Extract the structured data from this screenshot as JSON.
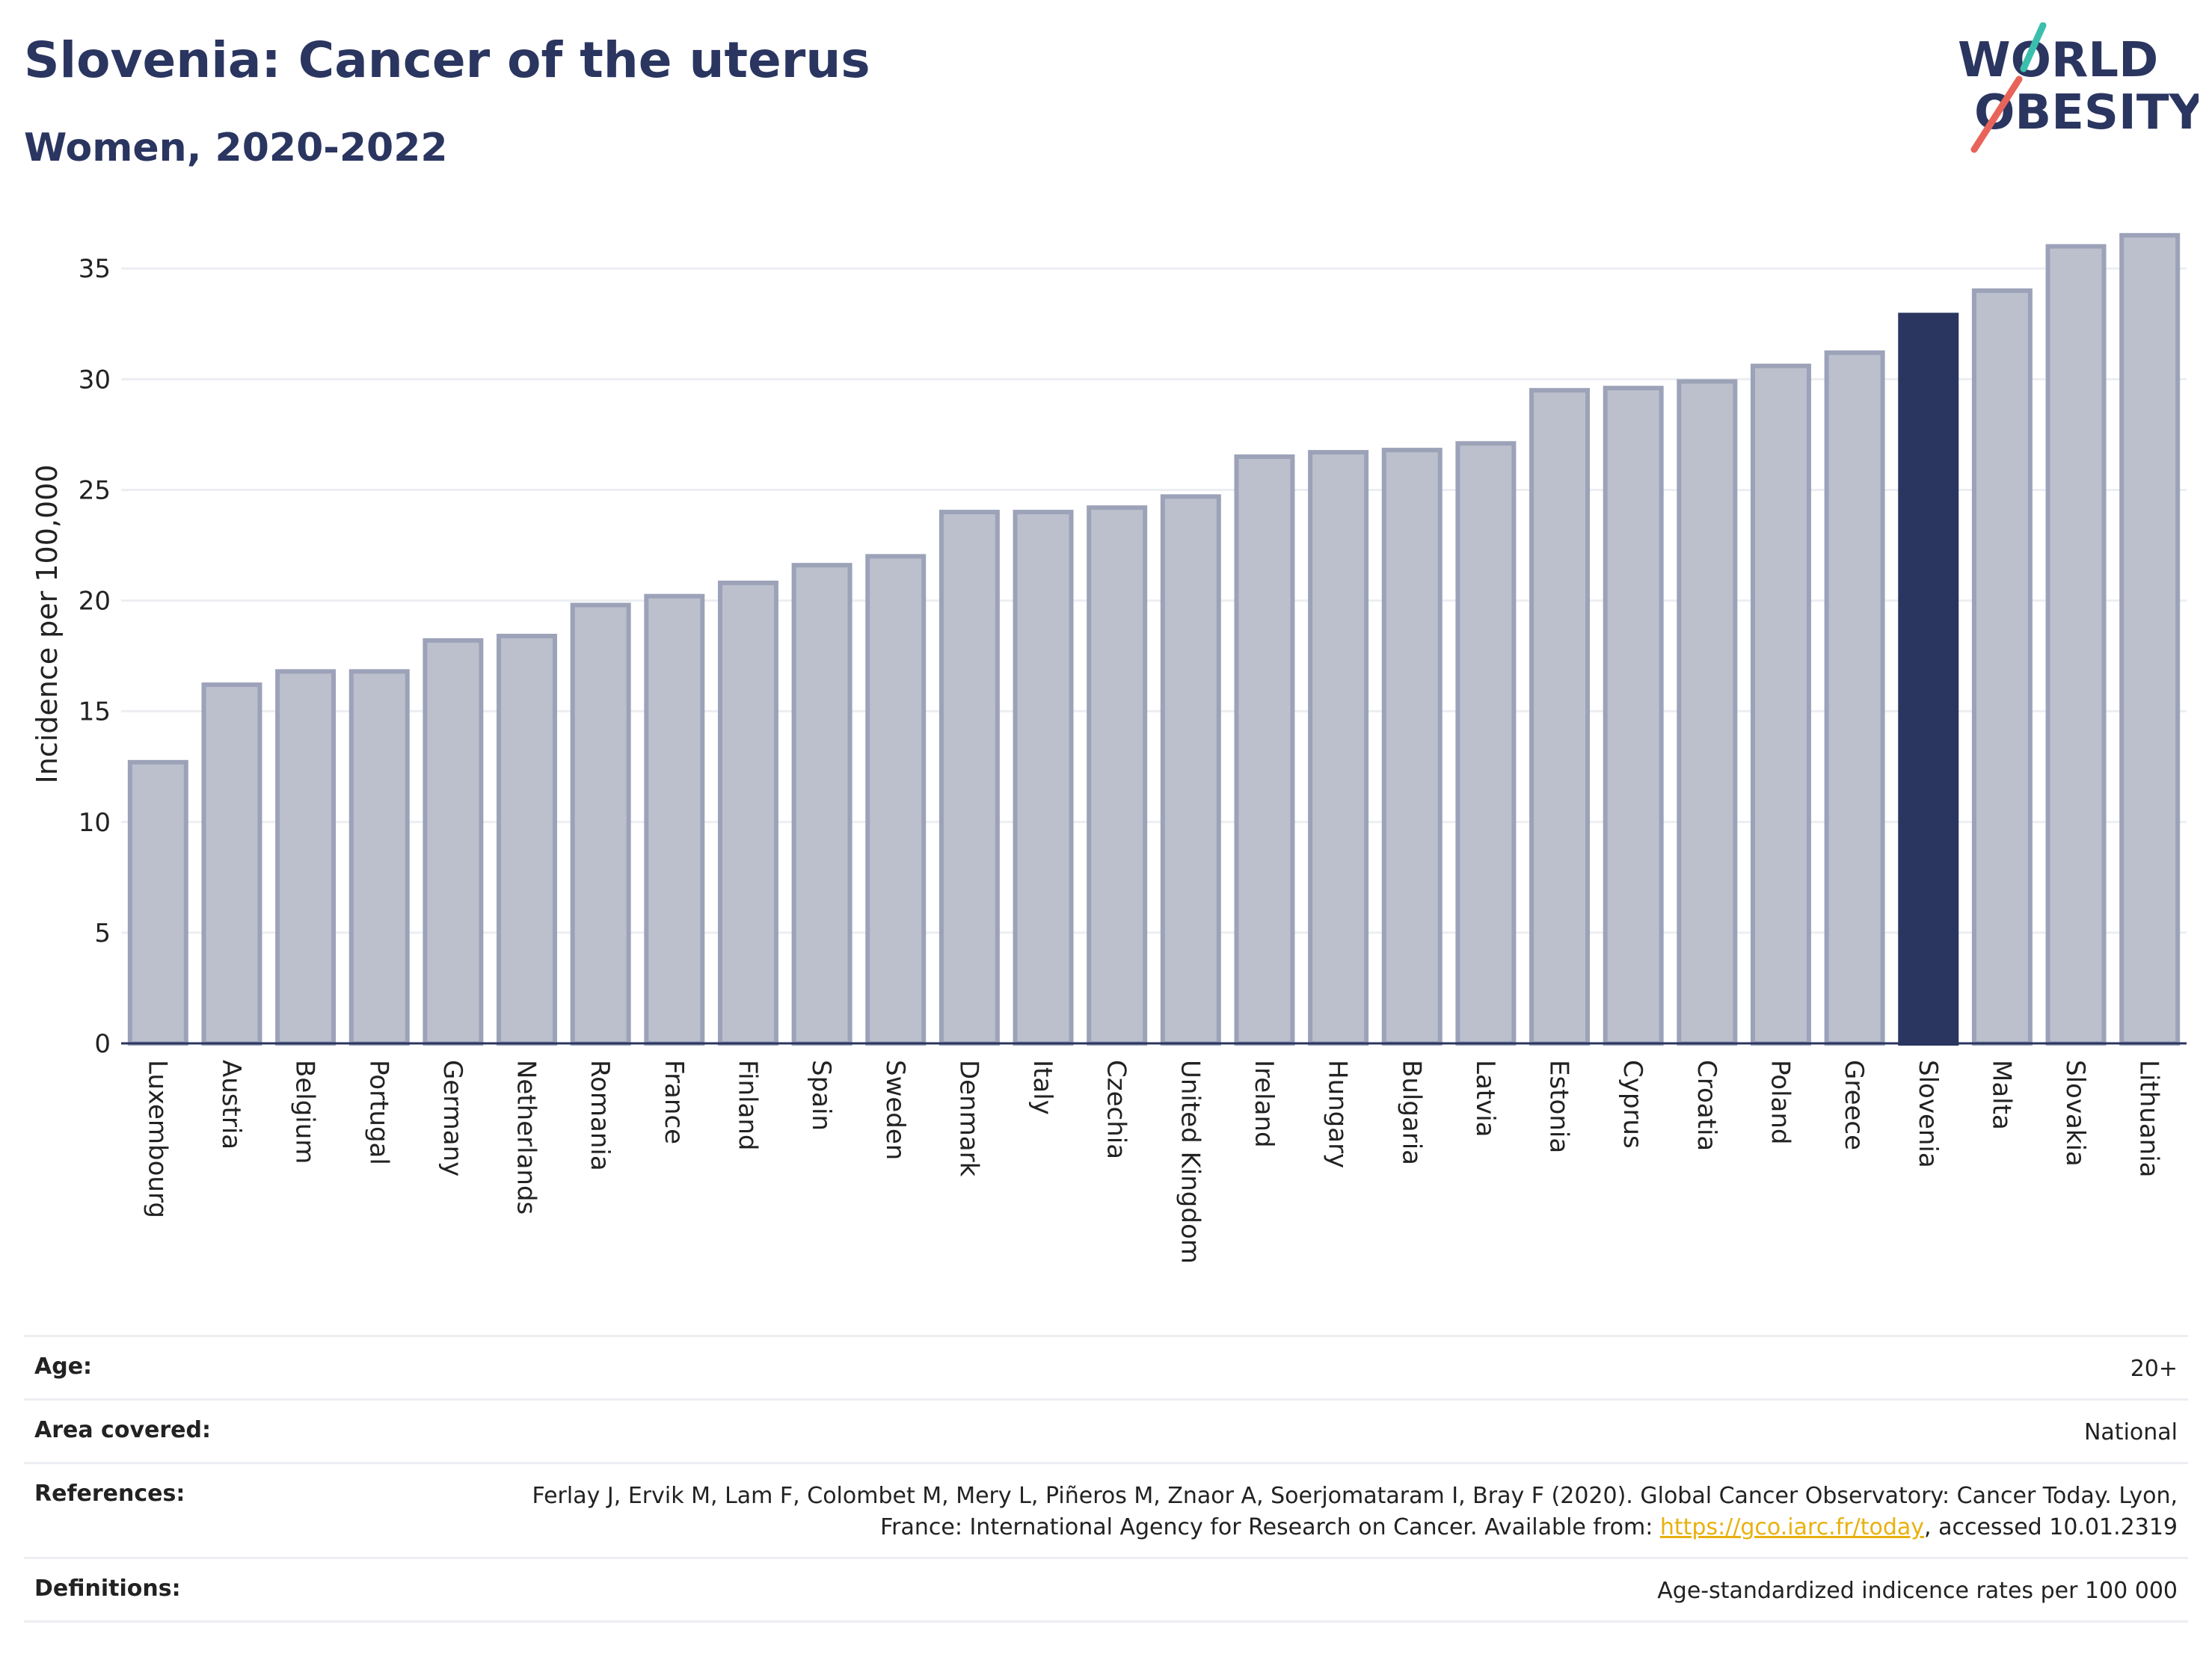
{
  "header": {
    "title": "Slovenia: Cancer of the uterus",
    "subtitle": "Women, 2020-2022"
  },
  "logo": {
    "line1": "WORLD",
    "line2": "OBESITY",
    "accent_teal": "#3bbfad",
    "accent_red": "#e8635a"
  },
  "colors": {
    "bar": "#bcc0cd",
    "bar_border": "#9ca2b8",
    "highlight": "#2a3560",
    "grid": "#eceef2"
  },
  "chart_data": {
    "type": "bar",
    "ylabel": "Incidence per 100,000",
    "xlabel": "",
    "ylim": [
      0,
      37
    ],
    "yticks": [
      0,
      5,
      10,
      15,
      20,
      25,
      30,
      35
    ],
    "grid": true,
    "highlight": "Slovenia",
    "categories": [
      "Luxembourg",
      "Austria",
      "Belgium",
      "Portugal",
      "Germany",
      "Netherlands",
      "Romania",
      "France",
      "Finland",
      "Spain",
      "Sweden",
      "Denmark",
      "Italy",
      "Czechia",
      "United Kingdom",
      "Ireland",
      "Hungary",
      "Bulgaria",
      "Latvia",
      "Estonia",
      "Cyprus",
      "Croatia",
      "Poland",
      "Greece",
      "Slovenia",
      "Malta",
      "Slovakia",
      "Lithuania"
    ],
    "values": [
      12.7,
      16.2,
      16.8,
      16.8,
      18.2,
      18.4,
      19.8,
      20.2,
      20.8,
      21.6,
      22.0,
      24.0,
      24.0,
      24.2,
      24.7,
      26.5,
      26.7,
      26.8,
      27.1,
      29.5,
      29.6,
      29.9,
      30.6,
      31.2,
      32.9,
      34.0,
      36.0,
      36.5
    ]
  },
  "meta": {
    "age_label": "Age:",
    "age_value": "20+",
    "area_label": "Area covered:",
    "area_value": "National",
    "references_label": "References:",
    "references_text_1": "Ferlay J, Ervik M, Lam F, Colombet M, Mery L, Piñeros M, Znaor A, Soerjomataram I, Bray F (2020). Global Cancer Observatory: Cancer Today. Lyon, France: International Agency for Research on Cancer. Available from: ",
    "references_link": "https://gco.iarc.fr/today",
    "references_text_2": ", accessed 10.01.2319",
    "definitions_label": "Definitions:",
    "definitions_value": "Age-standardized indicence rates per 100 000"
  }
}
